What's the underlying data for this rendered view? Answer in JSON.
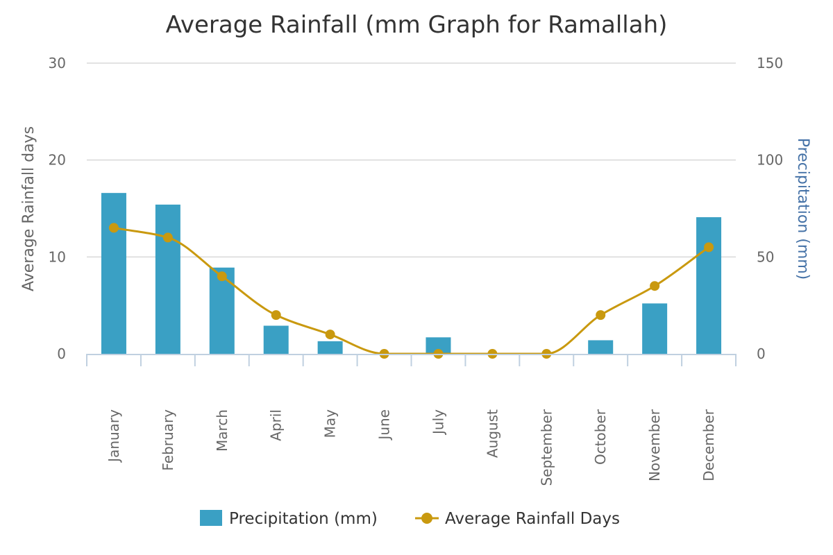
{
  "chart_data": {
    "type": "bar",
    "title": "Average Rainfall (mm Graph for Ramallah)",
    "categories": [
      "January",
      "February",
      "March",
      "April",
      "May",
      "June",
      "July",
      "August",
      "September",
      "October",
      "November",
      "December"
    ],
    "y_left": {
      "label": "Average Rainfall days",
      "ylim": [
        0,
        30
      ],
      "ticks": [
        0,
        10,
        20,
        30
      ]
    },
    "y_right": {
      "label": "Precipitation (mm)",
      "ylim": [
        0,
        150
      ],
      "ticks": [
        0,
        50,
        100,
        150
      ]
    },
    "series": [
      {
        "name": "Precipitation (mm)",
        "type": "bar",
        "axis": "right",
        "color": "#3aa0c4",
        "values": [
          83,
          77,
          44.5,
          14.5,
          6.5,
          0,
          8.5,
          0,
          0,
          7,
          26,
          70.5
        ]
      },
      {
        "name": "Average Rainfall Days",
        "type": "line",
        "axis": "left",
        "color": "#c9990f",
        "values": [
          13,
          12,
          8,
          4,
          2,
          0,
          0,
          0,
          0,
          4,
          7,
          11
        ]
      }
    ],
    "grid": true,
    "legend_position": "bottom"
  }
}
